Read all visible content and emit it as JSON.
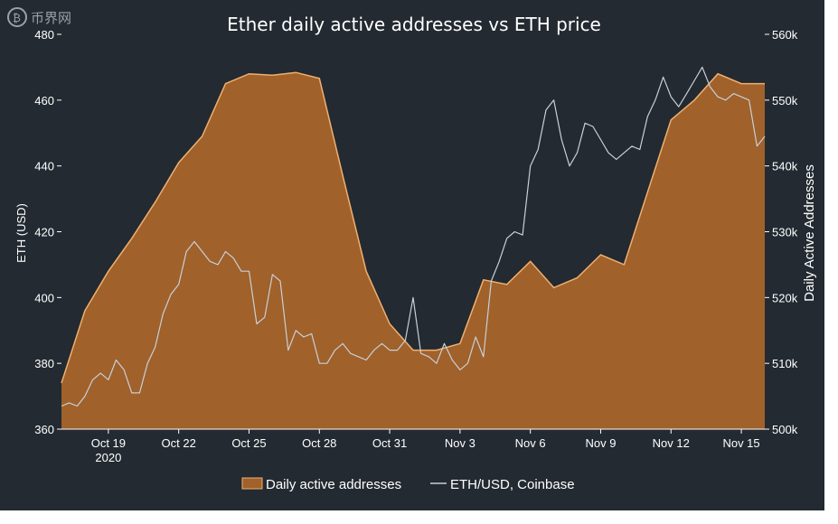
{
  "watermark": "币界网",
  "chart_data": {
    "type": "area",
    "title": "Ether daily active addresses vs ETH price",
    "y_left": {
      "label": "ETH (USD)",
      "range": [
        360,
        480
      ],
      "ticks": [
        360,
        380,
        400,
        420,
        440,
        460,
        480
      ]
    },
    "y_right": {
      "label": "Daily Active Addresses",
      "range": [
        500000,
        560000
      ],
      "ticks": [
        500000,
        510000,
        520000,
        530000,
        540000,
        550000,
        560000
      ],
      "tick_labels": [
        "500k",
        "510k",
        "520k",
        "530k",
        "540k",
        "550k",
        "560k"
      ]
    },
    "x": {
      "range": [
        0,
        30
      ],
      "ticks": [
        {
          "t": 2,
          "label": "Oct 19",
          "sub": "2020"
        },
        {
          "t": 5,
          "label": "Oct 22"
        },
        {
          "t": 8,
          "label": "Oct 25"
        },
        {
          "t": 11,
          "label": "Oct 28"
        },
        {
          "t": 14,
          "label": "Oct 31"
        },
        {
          "t": 17,
          "label": "Nov 3"
        },
        {
          "t": 20,
          "label": "Nov 6"
        },
        {
          "t": 23,
          "label": "Nov 9"
        },
        {
          "t": 26,
          "label": "Nov 12"
        },
        {
          "t": 29,
          "label": "Nov 15"
        }
      ]
    },
    "legend_position": "bottom-center",
    "series": [
      {
        "name": "Daily active addresses",
        "axis": "right",
        "color": "#a0612b",
        "line_color": "#f0b070",
        "points": [
          [
            0,
            507000
          ],
          [
            1,
            518000
          ],
          [
            2,
            524000
          ],
          [
            3,
            529000
          ],
          [
            4,
            534500
          ],
          [
            5,
            540500
          ],
          [
            6,
            544500
          ],
          [
            7,
            552500
          ],
          [
            8,
            554000
          ],
          [
            9,
            553800
          ],
          [
            10,
            554200
          ],
          [
            11,
            553300
          ],
          [
            12,
            538500
          ],
          [
            13,
            524000
          ],
          [
            14,
            516000
          ],
          [
            15,
            512000
          ],
          [
            16,
            512000
          ],
          [
            17,
            513000
          ],
          [
            18,
            522700
          ],
          [
            19,
            522000
          ],
          [
            20,
            525500
          ],
          [
            21,
            521500
          ],
          [
            22,
            523000
          ],
          [
            23,
            526500
          ],
          [
            24,
            525000
          ],
          [
            25,
            536000
          ],
          [
            26,
            547000
          ],
          [
            27,
            550000
          ],
          [
            28,
            554000
          ],
          [
            29,
            552500
          ],
          [
            30,
            552500
          ]
        ]
      },
      {
        "name": "ETH/USD, Coinbase",
        "axis": "left",
        "color": "#c8d0d8",
        "points": [
          [
            0,
            367
          ],
          [
            0.33,
            368
          ],
          [
            0.67,
            367
          ],
          [
            1,
            370
          ],
          [
            1.33,
            375
          ],
          [
            1.67,
            377
          ],
          [
            2,
            375
          ],
          [
            2.33,
            381
          ],
          [
            2.67,
            378
          ],
          [
            3,
            371
          ],
          [
            3.33,
            371
          ],
          [
            3.67,
            380
          ],
          [
            4,
            385
          ],
          [
            4.33,
            395
          ],
          [
            4.67,
            401
          ],
          [
            5,
            404
          ],
          [
            5.33,
            414
          ],
          [
            5.67,
            417
          ],
          [
            6,
            414
          ],
          [
            6.33,
            411
          ],
          [
            6.67,
            410
          ],
          [
            7,
            414
          ],
          [
            7.33,
            412
          ],
          [
            7.67,
            408
          ],
          [
            8,
            408
          ],
          [
            8.33,
            392
          ],
          [
            8.67,
            394
          ],
          [
            9,
            407
          ],
          [
            9.33,
            405
          ],
          [
            9.67,
            384
          ],
          [
            10,
            390
          ],
          [
            10.33,
            388
          ],
          [
            10.67,
            389
          ],
          [
            11,
            380
          ],
          [
            11.33,
            380
          ],
          [
            11.67,
            384
          ],
          [
            12,
            386
          ],
          [
            12.33,
            383
          ],
          [
            12.67,
            382
          ],
          [
            13,
            381
          ],
          [
            13.33,
            384
          ],
          [
            13.67,
            386
          ],
          [
            14,
            384
          ],
          [
            14.33,
            384
          ],
          [
            14.67,
            387
          ],
          [
            15,
            400
          ],
          [
            15.33,
            383
          ],
          [
            15.67,
            382
          ],
          [
            16,
            380
          ],
          [
            16.33,
            386
          ],
          [
            16.67,
            381
          ],
          [
            17,
            378
          ],
          [
            17.33,
            380
          ],
          [
            17.67,
            388
          ],
          [
            18,
            382
          ],
          [
            18.33,
            405
          ],
          [
            18.67,
            411
          ],
          [
            19,
            418
          ],
          [
            19.33,
            420
          ],
          [
            19.67,
            419
          ],
          [
            20,
            440
          ],
          [
            20.33,
            445
          ],
          [
            20.67,
            457
          ],
          [
            21,
            460
          ],
          [
            21.33,
            448
          ],
          [
            21.67,
            440
          ],
          [
            22,
            444
          ],
          [
            22.33,
            453
          ],
          [
            22.67,
            452
          ],
          [
            23,
            448
          ],
          [
            23.33,
            444
          ],
          [
            23.67,
            442
          ],
          [
            24,
            444
          ],
          [
            24.33,
            446
          ],
          [
            24.67,
            445
          ],
          [
            25,
            455
          ],
          [
            25.33,
            460
          ],
          [
            25.67,
            467
          ],
          [
            26,
            461
          ],
          [
            26.33,
            458
          ],
          [
            26.67,
            462
          ],
          [
            27,
            466
          ],
          [
            27.33,
            470
          ],
          [
            27.67,
            464
          ],
          [
            28,
            461
          ],
          [
            28.33,
            460
          ],
          [
            28.67,
            462
          ],
          [
            29,
            461
          ],
          [
            29.33,
            460
          ],
          [
            29.67,
            446
          ],
          [
            30,
            449
          ]
        ]
      }
    ]
  }
}
